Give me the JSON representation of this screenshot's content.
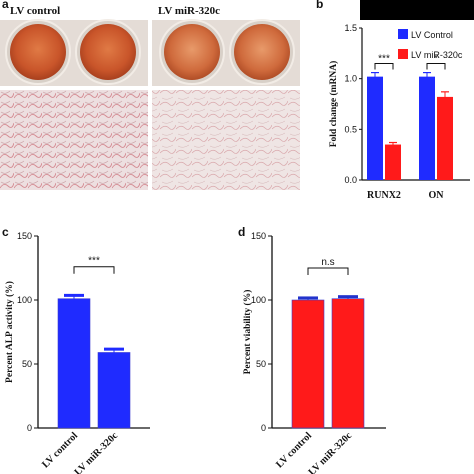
{
  "colors": {
    "blue": "#1f2bff",
    "red": "#ff1a1a",
    "panel_b_background": "#000000",
    "plate_well": "#d2632f",
    "tissue_pink": "#d9a2a6"
  },
  "panel_a": {
    "letter": "a",
    "label_control": "LV control",
    "label_treatment": "LV miR-320c"
  },
  "chart_data": [
    {
      "panel": "b",
      "type": "bar",
      "ylabel": "Fold change (mRNA)",
      "ylim": [
        0,
        1.5
      ],
      "yticks": [
        "0.0",
        "0.5",
        "1.0",
        "1.5"
      ],
      "categories": [
        "RUNX2",
        "ON"
      ],
      "series": [
        {
          "name": "LV Control",
          "color": "#1f2bff",
          "values": [
            1.02,
            1.02
          ],
          "errors": [
            0.04,
            0.04
          ]
        },
        {
          "name": "LV miR-320c",
          "color": "#ff1a1a",
          "values": [
            0.35,
            0.82
          ],
          "errors": [
            0.02,
            0.05
          ]
        }
      ],
      "significance": [
        "***",
        "*"
      ],
      "legend": "top-right",
      "background": "black"
    },
    {
      "panel": "c",
      "type": "bar",
      "ylabel": "Percent ALP activity (%)",
      "ylim": [
        0,
        150
      ],
      "yticks": [
        "0",
        "50",
        "100",
        "150"
      ],
      "categories": [
        "LV control",
        "LV miR-320c"
      ],
      "values": [
        101,
        59
      ],
      "errors": [
        3,
        3
      ],
      "color": "#1f2bff",
      "significance": "***"
    },
    {
      "panel": "d",
      "type": "bar",
      "ylabel": "Percent viability (%)",
      "ylim": [
        0,
        150
      ],
      "yticks": [
        "0",
        "50",
        "100",
        "150"
      ],
      "categories": [
        "LV control",
        "LV miR-320c"
      ],
      "values": [
        100,
        101
      ],
      "errors": [
        2,
        2
      ],
      "color": "#ff1a1a",
      "significance": "n.s"
    }
  ]
}
